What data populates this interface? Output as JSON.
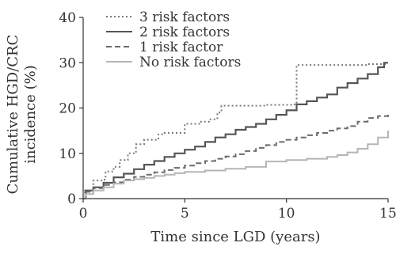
{
  "chart_data": {
    "type": "line",
    "title": "",
    "xlabel": "Time since LGD (years)",
    "ylabel": "Cumulative HGD/CRC incidence (%)",
    "ylabel_lines": [
      "Cumulative HGD/CRC",
      "incidence (%)"
    ],
    "xlim": [
      0,
      15
    ],
    "ylim": [
      0,
      40
    ],
    "x_ticks": [
      0,
      5,
      10,
      15
    ],
    "y_ticks": [
      0,
      10,
      20,
      30,
      40
    ],
    "grid": false,
    "legend_position": "top-left",
    "series": [
      {
        "name": "3 risk factors",
        "color": "#7a7a7a",
        "style": "dotted",
        "points": [
          [
            0,
            0
          ],
          [
            0.15,
            1.5
          ],
          [
            0.5,
            4
          ],
          [
            1.0,
            4.2
          ],
          [
            1.1,
            6
          ],
          [
            1.5,
            7
          ],
          [
            1.8,
            8.5
          ],
          [
            2.2,
            10
          ],
          [
            2.6,
            12
          ],
          [
            3.0,
            13
          ],
          [
            3.5,
            13
          ],
          [
            3.7,
            14.2
          ],
          [
            4.0,
            14.5
          ],
          [
            4.9,
            14.5
          ],
          [
            5.0,
            16.5
          ],
          [
            5.6,
            16.5
          ],
          [
            5.8,
            17
          ],
          [
            6.2,
            17.5
          ],
          [
            6.6,
            19
          ],
          [
            6.8,
            20.5
          ],
          [
            8.0,
            20.5
          ],
          [
            9.0,
            20.7
          ],
          [
            10.3,
            20.8
          ],
          [
            10.5,
            29.5
          ],
          [
            12.5,
            29.5
          ],
          [
            14.0,
            29.7
          ],
          [
            15.0,
            29.7
          ]
        ]
      },
      {
        "name": "2 risk factors",
        "color": "#555555",
        "style": "solid",
        "points": [
          [
            0,
            0
          ],
          [
            0.1,
            1.8
          ],
          [
            0.5,
            2.5
          ],
          [
            1.0,
            3.5
          ],
          [
            1.5,
            4.7
          ],
          [
            2.0,
            5.5
          ],
          [
            2.5,
            6.5
          ],
          [
            3.0,
            7.5
          ],
          [
            3.5,
            8.3
          ],
          [
            4.0,
            9.2
          ],
          [
            4.5,
            10
          ],
          [
            5.0,
            10.8
          ],
          [
            5.5,
            11.5
          ],
          [
            6.0,
            12.5
          ],
          [
            6.5,
            13.5
          ],
          [
            7.0,
            14.2
          ],
          [
            7.5,
            15.2
          ],
          [
            8.0,
            15.8
          ],
          [
            8.5,
            16.5
          ],
          [
            9.0,
            17.5
          ],
          [
            9.5,
            18.5
          ],
          [
            10.0,
            19.5
          ],
          [
            10.5,
            20.8
          ],
          [
            11.0,
            21.5
          ],
          [
            11.5,
            22.3
          ],
          [
            12.0,
            23
          ],
          [
            12.5,
            24.5
          ],
          [
            13.0,
            25.5
          ],
          [
            13.5,
            26.5
          ],
          [
            14.0,
            27.5
          ],
          [
            14.5,
            29
          ],
          [
            14.8,
            30
          ],
          [
            15.0,
            30
          ]
        ]
      },
      {
        "name": "1 risk factor",
        "color": "#6b6b6b",
        "style": "dashed",
        "points": [
          [
            0,
            0
          ],
          [
            0.1,
            1.5
          ],
          [
            0.5,
            2.3
          ],
          [
            1.0,
            3
          ],
          [
            1.5,
            3.6
          ],
          [
            2.0,
            4.2
          ],
          [
            2.5,
            4.8
          ],
          [
            3.0,
            5.3
          ],
          [
            3.5,
            5.8
          ],
          [
            4.0,
            6.3
          ],
          [
            4.5,
            6.8
          ],
          [
            5.0,
            7.3
          ],
          [
            5.5,
            7.8
          ],
          [
            6.0,
            8.3
          ],
          [
            6.5,
            8.8
          ],
          [
            7.0,
            9.3
          ],
          [
            7.5,
            9.8
          ],
          [
            8.0,
            10.5
          ],
          [
            8.5,
            11.2
          ],
          [
            9.0,
            11.8
          ],
          [
            9.5,
            12.5
          ],
          [
            10.0,
            13
          ],
          [
            10.5,
            13.5
          ],
          [
            11.0,
            14
          ],
          [
            11.5,
            14.5
          ],
          [
            12.0,
            15
          ],
          [
            12.5,
            15.5
          ],
          [
            13.0,
            16
          ],
          [
            13.5,
            17
          ],
          [
            14.0,
            17.8
          ],
          [
            14.5,
            18.2
          ],
          [
            15.0,
            19
          ]
        ]
      },
      {
        "name": "No risk factors",
        "color": "#b5b5b5",
        "style": "solid",
        "points": [
          [
            0,
            0
          ],
          [
            0.1,
            1
          ],
          [
            0.5,
            1.8
          ],
          [
            1.0,
            2.5
          ],
          [
            1.5,
            3.3
          ],
          [
            2.0,
            4
          ],
          [
            2.5,
            4.3
          ],
          [
            3.0,
            4.6
          ],
          [
            3.5,
            5
          ],
          [
            4.0,
            5.3
          ],
          [
            4.5,
            5.6
          ],
          [
            5.0,
            5.9
          ],
          [
            6.0,
            6.2
          ],
          [
            7.0,
            6.6
          ],
          [
            8.0,
            7
          ],
          [
            9.0,
            8.2
          ],
          [
            10.0,
            8.5
          ],
          [
            11.0,
            8.8
          ],
          [
            12.0,
            9.2
          ],
          [
            12.5,
            9.6
          ],
          [
            13.0,
            10.2
          ],
          [
            13.5,
            11
          ],
          [
            14.0,
            12
          ],
          [
            14.5,
            13.5
          ],
          [
            15.0,
            15
          ]
        ]
      }
    ]
  }
}
